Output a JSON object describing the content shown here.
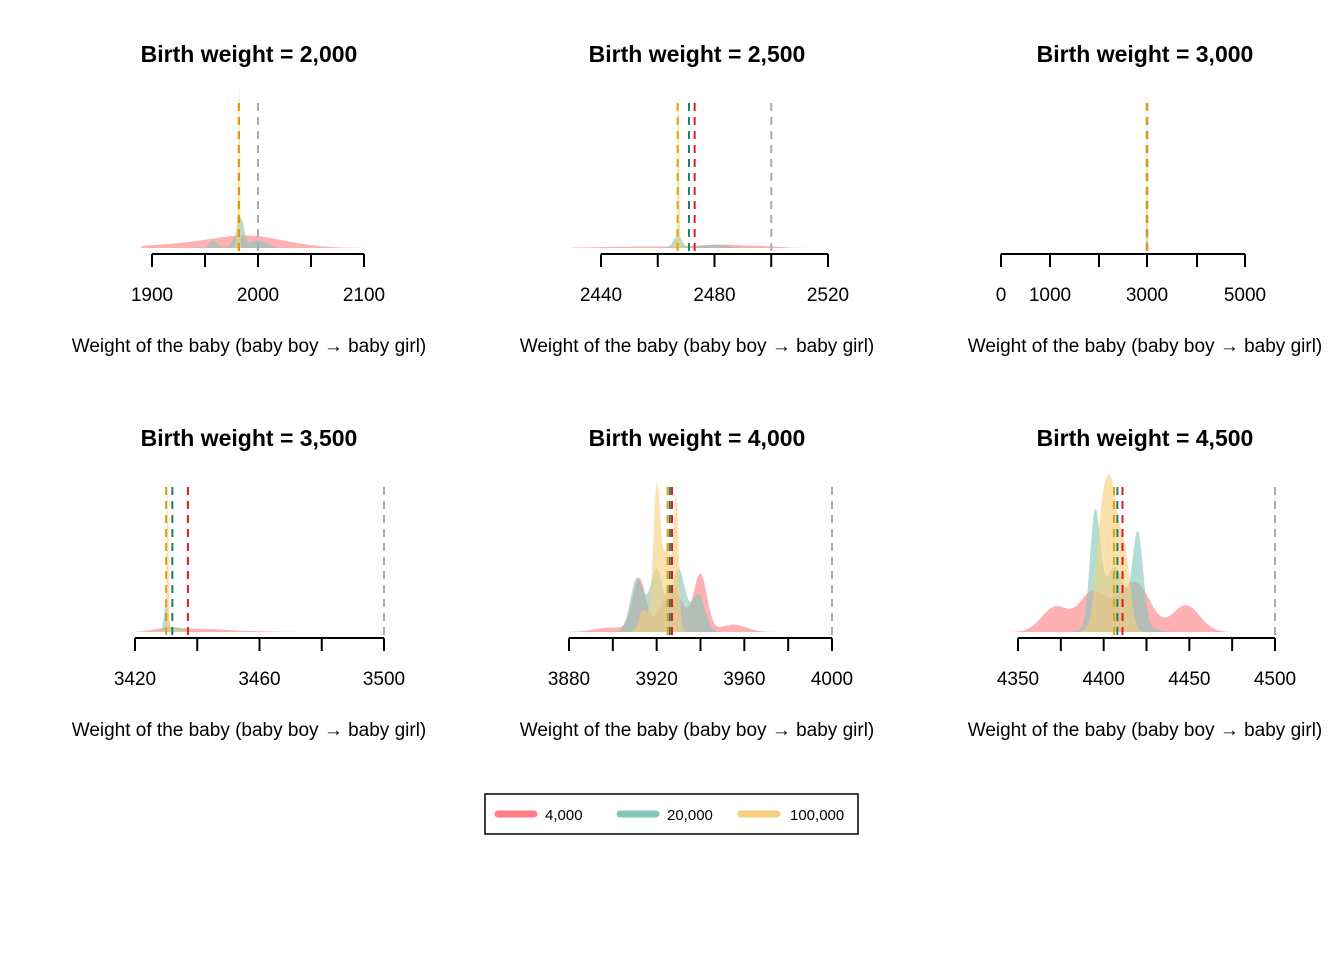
{
  "chart_data": {
    "type": "area",
    "legend": {
      "placement": "bottom-center",
      "entries": [
        {
          "label": "4,000",
          "color": "#FF7F84"
        },
        {
          "label": "20,000",
          "color": "#84C7B9"
        },
        {
          "label": "100,000",
          "color": "#F7CF7C"
        }
      ]
    },
    "line_colors": {
      "4,000": "#E41A1C",
      "20,000": "#1B7F6B",
      "100,000": "#E69F00",
      "target": "#AAAAAA"
    },
    "panels": [
      {
        "title": "Birth weight = 2,000",
        "xlabel": "Weight of the baby (baby boy → baby girl)",
        "xlim": [
          1890,
          2100
        ],
        "ticks": [
          1900,
          1950,
          2000,
          2050,
          2100
        ],
        "tick_labels": [
          "1900",
          "",
          "2000",
          "",
          "2100"
        ],
        "target": 2000,
        "means": {
          "4,000": 1982,
          "20,000": 1982,
          "100,000": 1982
        },
        "series": [
          {
            "name": "4,000",
            "peaks": [
              [
                1940,
                0.03,
                40
              ],
              [
                1985,
                0.05,
                28
              ],
              [
                2015,
                0.03,
                30
              ]
            ]
          },
          {
            "name": "20,000",
            "peaks": [
              [
                1958,
                0.05,
                4
              ],
              [
                1979,
                0.06,
                4
              ],
              [
                1984,
                0.17,
                3
              ],
              [
                2000,
                0.05,
                8
              ]
            ]
          },
          {
            "name": "100,000",
            "peaks": [
              [
                1981,
                0.25,
                1.2
              ],
              [
                1982.5,
                1.0,
                0.6
              ]
            ]
          }
        ]
      },
      {
        "title": "Birth weight = 2,500",
        "xlabel": "Weight of the baby (baby boy → baby girl)",
        "xlim": [
          2430,
          2525
        ],
        "ticks": [
          2440,
          2460,
          2480,
          2500,
          2520
        ],
        "tick_labels": [
          "2440",
          "",
          "2480",
          "",
          "2520"
        ],
        "target": 2500,
        "means": {
          "4,000": 2473,
          "20,000": 2471,
          "100,000": 2467
        },
        "series": [
          {
            "name": "4,000",
            "peaks": [
              [
                2455,
                0.01,
                15
              ],
              [
                2482,
                0.02,
                8
              ],
              [
                2497,
                0.01,
                6
              ]
            ]
          },
          {
            "name": "20,000",
            "peaks": [
              [
                2467,
                0.08,
                1.5
              ],
              [
                2480,
                0.02,
                5
              ]
            ]
          },
          {
            "name": "100,000",
            "peaks": [
              [
                2467,
                0.05,
                1.0
              ],
              [
                2467.3,
                1.0,
                0.25
              ]
            ]
          }
        ]
      },
      {
        "title": "Birth weight = 3,000",
        "xlabel": "Weight of the baby (baby boy → baby girl)",
        "xlim": [
          0,
          5000
        ],
        "ticks": [
          0,
          500,
          1000,
          2000,
          3000,
          4000,
          5000
        ],
        "tick_labels": [
          "0",
          "",
          "1000",
          "",
          "3000",
          "",
          "5000"
        ],
        "target": 3000,
        "means": {
          "4,000": 2990,
          "20,000": 2990,
          "100,000": 2990
        },
        "series": [
          {
            "name": "4,000",
            "peaks": [
              [
                2990,
                1.0,
                6
              ]
            ]
          },
          {
            "name": "20,000",
            "peaks": [
              [
                2990,
                1.0,
                5
              ]
            ]
          },
          {
            "name": "100,000",
            "peaks": [
              [
                2990,
                1.0,
                4
              ]
            ]
          }
        ]
      },
      {
        "title": "Birth weight = 3,500",
        "xlabel": "Weight of the baby (baby boy → baby girl)",
        "xlim": [
          3420,
          3500
        ],
        "ticks": [
          3420,
          3440,
          3460,
          3480,
          3500
        ],
        "tick_labels": [
          "3420",
          "",
          "3460",
          "",
          "3500"
        ],
        "target": 3500,
        "means": {
          "4,000": 3437,
          "20,000": 3432,
          "100,000": 3430
        },
        "series": [
          {
            "name": "4,000",
            "peaks": [
              [
                3430,
                0.02,
                4
              ],
              [
                3440,
                0.02,
                8
              ],
              [
                3455,
                0.005,
                8
              ]
            ]
          },
          {
            "name": "20,000",
            "peaks": [
              [
                3430,
                0.2,
                0.6
              ],
              [
                3433,
                0.03,
                3
              ]
            ]
          },
          {
            "name": "100,000",
            "peaks": [
              [
                3430.5,
                1.0,
                0.25
              ],
              [
                3432,
                0.02,
                3
              ]
            ]
          }
        ]
      },
      {
        "title": "Birth weight = 4,000",
        "xlabel": "Weight of the baby (baby boy → baby girl)",
        "xlim": [
          3880,
          4000
        ],
        "ticks": [
          3880,
          3900,
          3920,
          3940,
          3960,
          3980,
          4000
        ],
        "tick_labels": [
          "3880",
          "",
          "3920",
          "",
          "3960",
          "",
          "4000"
        ],
        "target": 4000,
        "means": {
          "4,000": 3927,
          "20,000": 3926,
          "100,000": 3925
        },
        "series": [
          {
            "name": "4,000",
            "peaks": [
              [
                3912,
                0.35,
                3
              ],
              [
                3927,
                0.3,
                5
              ],
              [
                3940,
                0.38,
                3
              ],
              [
                3900,
                0.03,
                8
              ],
              [
                3955,
                0.05,
                6
              ]
            ]
          },
          {
            "name": "20,000",
            "peaks": [
              [
                3911,
                0.36,
                3
              ],
              [
                3920,
                0.42,
                3
              ],
              [
                3930,
                0.42,
                3
              ],
              [
                3939,
                0.25,
                3
              ]
            ]
          },
          {
            "name": "100,000",
            "peaks": [
              [
                3920,
                0.92,
                1.6
              ],
              [
                3929,
                0.76,
                1.1
              ],
              [
                3925,
                0.55,
                2.5
              ],
              [
                3914,
                0.15,
                2
              ]
            ]
          }
        ]
      },
      {
        "title": "Birth weight = 4,500",
        "xlabel": "Weight of the baby (baby boy → baby girl)",
        "xlim": [
          4320,
          4500
        ],
        "ticks": [
          4350,
          4375,
          4400,
          4425,
          4450,
          4475,
          4500
        ],
        "tick_labels": [
          "4350",
          "",
          "4400",
          "",
          "4450",
          "",
          "4500"
        ],
        "target": 4500,
        "means": {
          "4,000": 4411,
          "20,000": 4408,
          "100,000": 4406
        },
        "series": [
          {
            "name": "4,000",
            "peaks": [
              [
                4372,
                0.17,
                8
              ],
              [
                4392,
                0.2,
                7
              ],
              [
                4420,
                0.28,
                8
              ],
              [
                4448,
                0.18,
                8
              ],
              [
                4405,
                0.15,
                10
              ]
            ]
          },
          {
            "name": "20,000",
            "peaks": [
              [
                4395,
                0.75,
                3
              ],
              [
                4420,
                0.58,
                3
              ],
              [
                4406,
                0.3,
                5
              ],
              [
                4410,
                0.15,
                10
              ]
            ]
          },
          {
            "name": "100,000",
            "peaks": [
              [
                4404,
                1.0,
                5
              ],
              [
                4413,
                0.35,
                3
              ],
              [
                4398,
                0.3,
                3
              ]
            ]
          }
        ]
      }
    ]
  }
}
